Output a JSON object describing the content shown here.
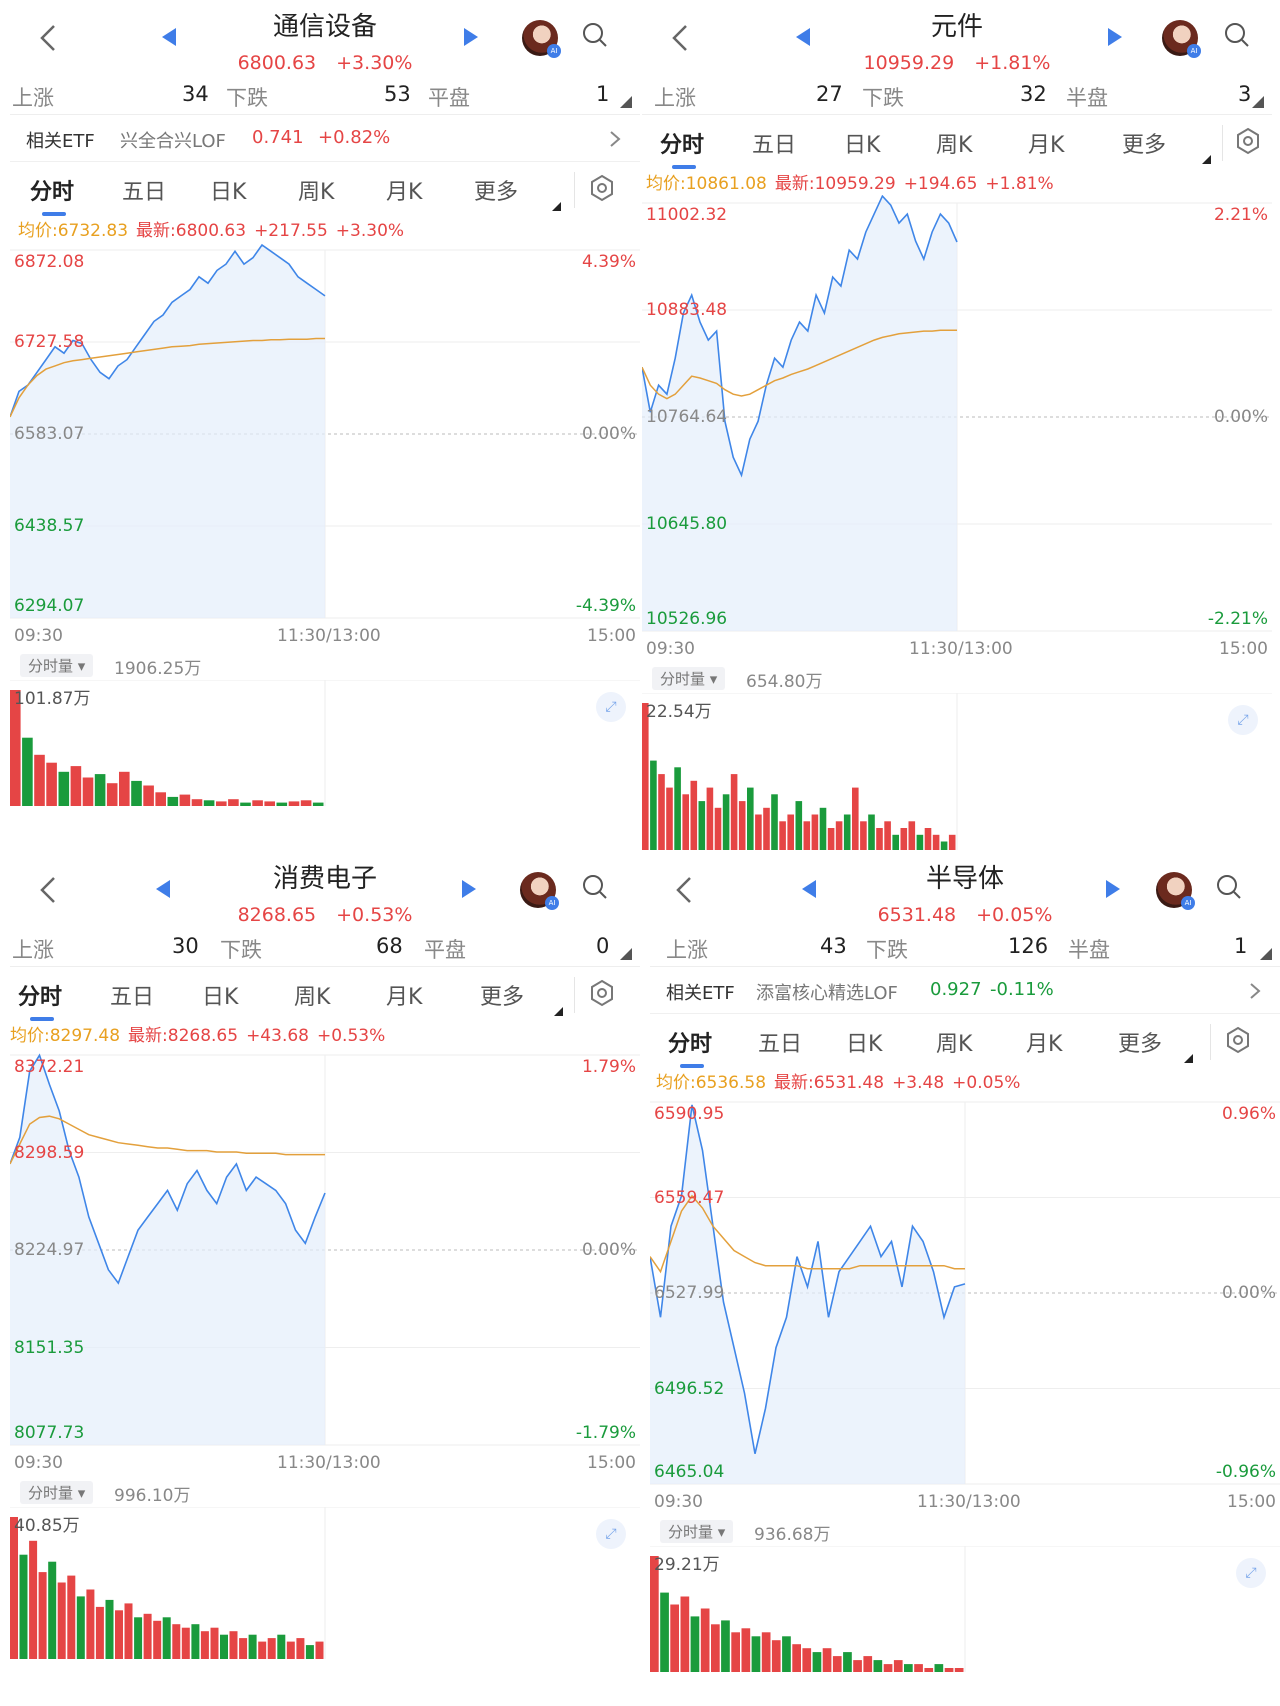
{
  "panels": [
    {
      "title": "通信设备",
      "price": "6800.63",
      "change_pct": "+3.30%",
      "stats": {
        "up_label": "上涨",
        "up": "34",
        "down_label": "下跌",
        "down": "53",
        "flat_label": "平盘",
        "flat": "1"
      },
      "etf": {
        "label": "相关ETF",
        "name": "兴全合兴LOF",
        "price": "0.741",
        "change": "+0.82%"
      },
      "tabs": [
        "分时",
        "五日",
        "日K",
        "周K",
        "月K",
        "更多"
      ],
      "info": {
        "avg": "均价:6732.83",
        "latest": "最新:6800.63",
        "change": "+217.55",
        "pct": "+3.30%"
      },
      "y_left": [
        "6872.08",
        "6727.58",
        "6583.07",
        "6438.57",
        "6294.07"
      ],
      "y_right": [
        "4.39%",
        "",
        "0.00%",
        "",
        "-4.39%"
      ],
      "x_labels": [
        "09:30",
        "11:30/13:00",
        "15:00"
      ],
      "vol_label": "分时量",
      "vol_total": "1906.25万",
      "vol_max": "101.87万"
    },
    {
      "title": "元件",
      "price": "10959.29",
      "change_pct": "+1.81%",
      "stats": {
        "up_label": "上涨",
        "up": "27",
        "down_label": "下跌",
        "down": "32",
        "flat_label": "半盘",
        "flat": "3"
      },
      "tabs": [
        "分时",
        "五日",
        "日K",
        "周K",
        "月K",
        "更多"
      ],
      "info": {
        "avg": "均价:10861.08",
        "latest": "最新:10959.29",
        "change": "+194.65",
        "pct": "+1.81%"
      },
      "y_left": [
        "11002.32",
        "10883.48",
        "10764.64",
        "10645.80",
        "10526.96"
      ],
      "y_right": [
        "2.21%",
        "",
        "0.00%",
        "",
        "-2.21%"
      ],
      "x_labels": [
        "09:30",
        "11:30/13:00",
        "15:00"
      ],
      "vol_label": "分时量",
      "vol_total": "654.80万",
      "vol_max": "22.54万"
    },
    {
      "title": "消费电子",
      "price": "8268.65",
      "change_pct": "+0.53%",
      "stats": {
        "up_label": "上涨",
        "up": "30",
        "down_label": "下跌",
        "down": "68",
        "flat_label": "平盘",
        "flat": "0"
      },
      "tabs": [
        "分时",
        "五日",
        "日K",
        "周K",
        "月K",
        "更多"
      ],
      "info": {
        "avg": "均价:8297.48",
        "latest": "最新:8268.65",
        "change": "+43.68",
        "pct": "+0.53%"
      },
      "y_left": [
        "8372.21",
        "8298.59",
        "8224.97",
        "8151.35",
        "8077.73"
      ],
      "y_right": [
        "1.79%",
        "",
        "0.00%",
        "",
        "-1.79%"
      ],
      "x_labels": [
        "09:30",
        "11:30/13:00",
        "15:00"
      ],
      "vol_label": "分时量",
      "vol_total": "996.10万",
      "vol_max": "40.85万"
    },
    {
      "title": "半导体",
      "price": "6531.48",
      "change_pct": "+0.05%",
      "stats": {
        "up_label": "上涨",
        "up": "43",
        "down_label": "下跌",
        "down": "126",
        "flat_label": "半盘",
        "flat": "1"
      },
      "etf": {
        "label": "相关ETF",
        "name": "添富核心精选LOF",
        "price": "0.927",
        "change": "-0.11%"
      },
      "tabs": [
        "分时",
        "五日",
        "日K",
        "周K",
        "月K",
        "更多"
      ],
      "info": {
        "avg": "均价:6536.58",
        "latest": "最新:6531.48",
        "change": "+3.48",
        "pct": "+0.05%"
      },
      "y_left": [
        "6590.95",
        "6559.47",
        "6527.99",
        "6496.52",
        "6465.04"
      ],
      "y_right": [
        "0.96%",
        "",
        "0.00%",
        "",
        "-0.96%"
      ],
      "x_labels": [
        "09:30",
        "11:30/13:00",
        "15:00"
      ],
      "vol_label": "分时量",
      "vol_total": "936.68万",
      "vol_max": "29.21万"
    }
  ],
  "chart_data": [
    {
      "type": "line",
      "title": "通信设备",
      "ylim": [
        6294.07,
        6872.08
      ],
      "grid": true,
      "series": [
        {
          "values": [
            6610,
            6650,
            6660,
            6680,
            6700,
            6720,
            6710,
            6730,
            6725,
            6700,
            6680,
            6670,
            6690,
            6700,
            6720,
            6740,
            6760,
            6770,
            6790,
            6800,
            6810,
            6830,
            6820,
            6840,
            6850,
            6870,
            6850,
            6860,
            6880,
            6870,
            6860,
            6850,
            6830,
            6820,
            6810,
            6800
          ]
        },
        {
          "values": [
            6610,
            6640,
            6660,
            6675,
            6685,
            6690,
            6695,
            6698,
            6700,
            6702,
            6704,
            6706,
            6708,
            6710,
            6712,
            6714,
            6716,
            6718,
            6720,
            6721,
            6722,
            6724,
            6725,
            6726,
            6727,
            6728,
            6729,
            6730,
            6730,
            6731,
            6731,
            6732,
            6732,
            6732,
            6733,
            6733
          ]
        }
      ],
      "volumes": [
        101.87,
        60,
        45,
        38,
        30,
        35,
        25,
        28,
        20,
        30,
        22,
        18,
        12,
        8,
        10,
        6,
        5,
        4,
        6,
        3,
        5,
        4,
        3,
        4,
        5,
        3
      ]
    },
    {
      "type": "line",
      "title": "元件",
      "ylim": [
        10526.96,
        11002.32
      ],
      "grid": true,
      "series": [
        {
          "values": [
            10820,
            10770,
            10800,
            10790,
            10830,
            10880,
            10900,
            10870,
            10850,
            10860,
            10760,
            10720,
            10700,
            10740,
            10760,
            10800,
            10830,
            10820,
            10850,
            10870,
            10860,
            10900,
            10880,
            10920,
            10910,
            10950,
            10940,
            10970,
            10990,
            11010,
            11000,
            10980,
            10990,
            10960,
            10940,
            10970,
            10990,
            10980,
            10959
          ]
        },
        {
          "values": [
            10820,
            10800,
            10790,
            10785,
            10790,
            10800,
            10810,
            10808,
            10805,
            10802,
            10795,
            10790,
            10788,
            10790,
            10795,
            10800,
            10805,
            10808,
            10812,
            10815,
            10818,
            10822,
            10826,
            10830,
            10834,
            10838,
            10842,
            10846,
            10850,
            10853,
            10855,
            10857,
            10858,
            10859,
            10860,
            10860,
            10861,
            10861,
            10861
          ]
        }
      ],
      "volumes": [
        22.54,
        14,
        12,
        10,
        13,
        9,
        11,
        8,
        10,
        7,
        9,
        12,
        8,
        10,
        6,
        7,
        9,
        5,
        6,
        8,
        5,
        6,
        7,
        4,
        5,
        6,
        10,
        5,
        6,
        4,
        5,
        3,
        4,
        5,
        3,
        4,
        3,
        2,
        3
      ]
    },
    {
      "type": "line",
      "title": "消费电子",
      "ylim": [
        8077.73,
        8372.21
      ],
      "grid": true,
      "series": [
        {
          "values": [
            8290,
            8310,
            8360,
            8372,
            8350,
            8330,
            8300,
            8280,
            8250,
            8230,
            8210,
            8200,
            8220,
            8240,
            8250,
            8260,
            8270,
            8255,
            8275,
            8285,
            8270,
            8260,
            8280,
            8290,
            8270,
            8280,
            8275,
            8270,
            8260,
            8240,
            8230,
            8250,
            8268
          ]
        },
        {
          "values": [
            8290,
            8305,
            8320,
            8325,
            8326,
            8324,
            8320,
            8316,
            8312,
            8310,
            8308,
            8306,
            8305,
            8304,
            8303,
            8302,
            8302,
            8301,
            8300,
            8300,
            8300,
            8299,
            8299,
            8299,
            8298,
            8298,
            8298,
            8298,
            8297,
            8297,
            8297,
            8297,
            8297
          ]
        }
      ],
      "volumes": [
        40.85,
        30,
        34,
        25,
        28,
        22,
        24,
        18,
        20,
        15,
        17,
        14,
        16,
        12,
        13,
        11,
        12,
        10,
        9,
        10,
        8,
        9,
        7,
        8,
        6,
        7,
        5,
        6,
        7,
        5,
        6,
        4,
        5
      ]
    },
    {
      "type": "line",
      "title": "半导体",
      "ylim": [
        6465.04,
        6590.95
      ],
      "grid": true,
      "series": [
        {
          "values": [
            6540,
            6520,
            6550,
            6560,
            6590,
            6575,
            6550,
            6525,
            6510,
            6495,
            6475,
            6490,
            6510,
            6520,
            6540,
            6530,
            6545,
            6520,
            6535,
            6540,
            6545,
            6550,
            6540,
            6545,
            6530,
            6550,
            6545,
            6535,
            6520,
            6530,
            6531
          ]
        },
        {
          "values": [
            6540,
            6535,
            6545,
            6555,
            6560,
            6556,
            6550,
            6546,
            6542,
            6540,
            6538,
            6537,
            6537,
            6537,
            6537,
            6536,
            6536,
            6536,
            6536,
            6536,
            6537,
            6537,
            6537,
            6537,
            6537,
            6537,
            6537,
            6537,
            6537,
            6536,
            6536
          ]
        }
      ],
      "volumes": [
        29.21,
        20,
        17,
        19,
        14,
        16,
        12,
        13,
        10,
        11,
        9,
        10,
        8,
        9,
        7,
        6,
        5,
        6,
        4,
        5,
        3,
        4,
        3,
        2,
        3,
        2,
        2,
        1,
        2,
        1,
        1
      ]
    }
  ]
}
